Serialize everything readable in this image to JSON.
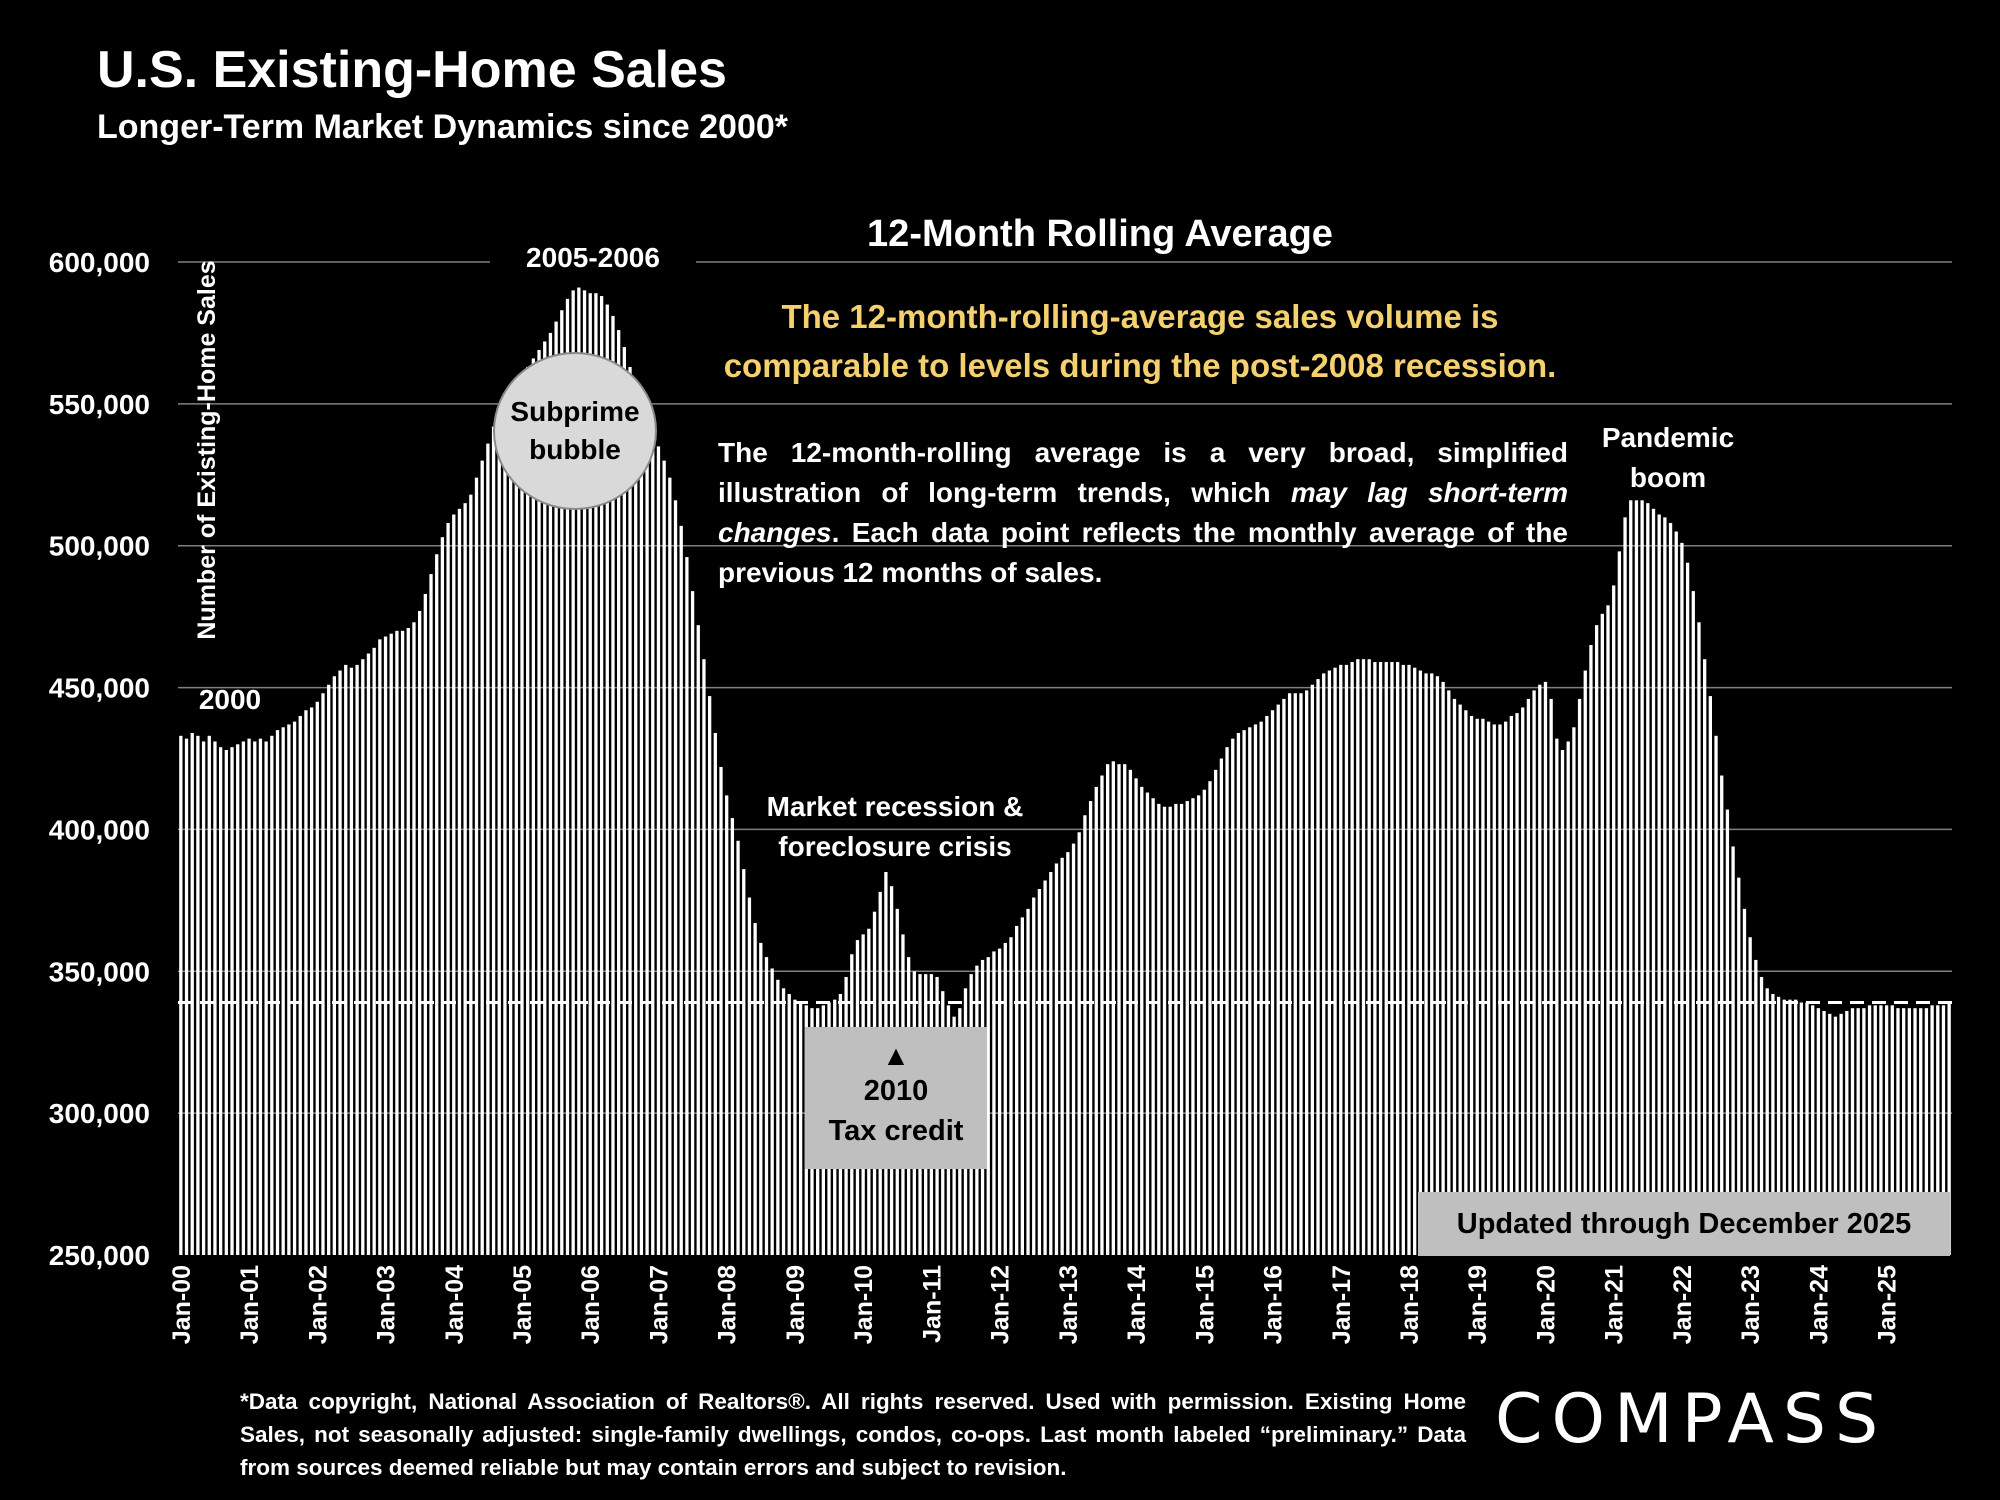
{
  "header": {
    "title": "U.S. Existing-Home Sales",
    "subtitle": "Longer-Term Market Dynamics since 2000*"
  },
  "colors": {
    "background": "#000000",
    "bar_fill": "#ffffff",
    "gridline": "#7f7f7f",
    "headline": "#f4d06f",
    "reference_line": "#ffffff",
    "callout_box": "#bfbfbf"
  },
  "chart_heading": "12-Month Rolling Average",
  "headline": "The 12-month-rolling-average sales volume is comparable to levels during the post-2008 recession.",
  "description": {
    "part1": "The 12-month-rolling average is a very broad, simplified illustration of long-term trends, which ",
    "emphasis": "may lag short-term changes",
    "part2": ". Each data point reflects the monthly average of the previous 12 months of sales."
  },
  "annotations": {
    "peak": "2005-2006",
    "start": "2000",
    "bubble_line1": "Subprime",
    "bubble_line2": "bubble",
    "recession_line1": "Market recession &",
    "recession_line2": "foreclosure crisis",
    "tax_credit_arrow": "▲",
    "tax_credit_line1": "2010",
    "tax_credit_line2": "Tax credit",
    "pandemic_line1": "Pandemic",
    "pandemic_line2": "boom",
    "updated": "Updated through December 2025"
  },
  "footnote": "*Data copyright, National Association of Realtors®. All rights reserved. Used with permission. Existing Home Sales, not seasonally adjusted: single-family dwellings, condos, co-ops. Last month labeled “preliminary.” Data from sources deemed reliable but may contain errors and subject to revision.",
  "logo": "COMPASS",
  "chart_data": {
    "type": "bar",
    "title": "12-Month Rolling Average",
    "ylabel": "Number of Existing-Home Sales",
    "xlabel": "",
    "ylim": [
      250000,
      600000
    ],
    "yticks": [
      250000,
      300000,
      350000,
      400000,
      450000,
      500000,
      550000,
      600000
    ],
    "ytick_labels": [
      "250,000",
      "300,000",
      "350,000",
      "400,000",
      "450,000",
      "500,000",
      "550,000",
      "600,000"
    ],
    "xtick_labels": [
      "Jan-00",
      "Jan-01",
      "Jan-02",
      "Jan-03",
      "Jan-04",
      "Jan-05",
      "Jan-06",
      "Jan-07",
      "Jan-08",
      "Jan-09",
      "Jan-10",
      "Jan-11",
      "Jan-12",
      "Jan-13",
      "Jan-14",
      "Jan-15",
      "Jan-16",
      "Jan-17",
      "Jan-18",
      "Jan-19",
      "Jan-20",
      "Jan-21",
      "Jan-22",
      "Jan-23",
      "Jan-24",
      "Jan-25"
    ],
    "grid": true,
    "reference_line": 339000,
    "reference_line_style": "dashed",
    "series": [
      {
        "values": [
          433000,
          432000,
          434000,
          433000,
          431000,
          433000,
          431000,
          429000,
          428000,
          429000,
          430000,
          431000,
          432000,
          431000,
          432000,
          431000,
          433000,
          435000,
          436000,
          437000,
          438000,
          440000,
          442000,
          443000,
          445000,
          448000,
          451000,
          454000,
          456000,
          458000,
          457000,
          458000,
          460000,
          462000,
          464000,
          467000,
          468000,
          469000,
          470000,
          470000,
          471000,
          473000,
          477000,
          483000,
          490000,
          497000,
          503000,
          508000,
          511000,
          513000,
          515000,
          518000,
          524000,
          530000,
          536000,
          542000,
          546000,
          550000,
          553000,
          556000,
          560000,
          563000,
          566000,
          569000,
          572000,
          575000,
          579000,
          583000,
          587000,
          590000,
          591000,
          590000,
          589000,
          589000,
          588000,
          585000,
          581000,
          576000,
          570000,
          563000,
          557000,
          551000,
          546000,
          540000,
          535000,
          530000,
          524000,
          516000,
          507000,
          496000,
          484000,
          472000,
          460000,
          447000,
          434000,
          422000,
          412000,
          404000,
          396000,
          386000,
          376000,
          367000,
          360000,
          355000,
          351000,
          347000,
          344000,
          342000,
          340000,
          339000,
          338000,
          337000,
          337000,
          338000,
          339000,
          340000,
          342000,
          348000,
          356000,
          361000,
          363000,
          365000,
          371000,
          378000,
          385000,
          380000,
          372000,
          363000,
          355000,
          350000,
          349000,
          349000,
          349000,
          348000,
          343000,
          338000,
          334000,
          337000,
          344000,
          349000,
          352000,
          354000,
          355000,
          357000,
          358000,
          360000,
          362000,
          366000,
          369000,
          372000,
          376000,
          379000,
          382000,
          385000,
          388000,
          390000,
          392000,
          395000,
          399000,
          405000,
          410000,
          415000,
          419000,
          423000,
          424000,
          423000,
          423000,
          421000,
          418000,
          415000,
          413000,
          411000,
          409000,
          408000,
          408000,
          409000,
          409000,
          410000,
          411000,
          412000,
          414000,
          417000,
          421000,
          425000,
          429000,
          432000,
          434000,
          435000,
          436000,
          437000,
          438000,
          440000,
          442000,
          444000,
          446000,
          448000,
          448000,
          448000,
          449000,
          451000,
          453000,
          455000,
          456000,
          457000,
          458000,
          458000,
          459000,
          460000,
          460000,
          460000,
          459000,
          459000,
          459000,
          459000,
          459000,
          458000,
          458000,
          457000,
          456000,
          455000,
          455000,
          454000,
          452000,
          449000,
          446000,
          444000,
          442000,
          440000,
          439000,
          439000,
          438000,
          437000,
          437000,
          438000,
          440000,
          441000,
          443000,
          446000,
          449000,
          451000,
          452000,
          446000,
          432000,
          428000,
          431000,
          436000,
          446000,
          456000,
          465000,
          472000,
          476000,
          479000,
          486000,
          498000,
          510000,
          516000,
          516000,
          516000,
          515000,
          513000,
          511000,
          510000,
          508000,
          505000,
          501000,
          494000,
          484000,
          473000,
          460000,
          447000,
          433000,
          419000,
          407000,
          394000,
          383000,
          372000,
          362000,
          354000,
          348000,
          344000,
          342000,
          341000,
          340000,
          340000,
          340000,
          339000,
          339000,
          338000,
          337000,
          336000,
          335000,
          334000,
          335000,
          336000,
          337000,
          337000,
          337000,
          338000,
          338000,
          338000,
          338000,
          338000,
          337000,
          337000,
          337000,
          337000,
          337000,
          337000,
          338000,
          338000,
          338000,
          339000
        ]
      }
    ]
  }
}
